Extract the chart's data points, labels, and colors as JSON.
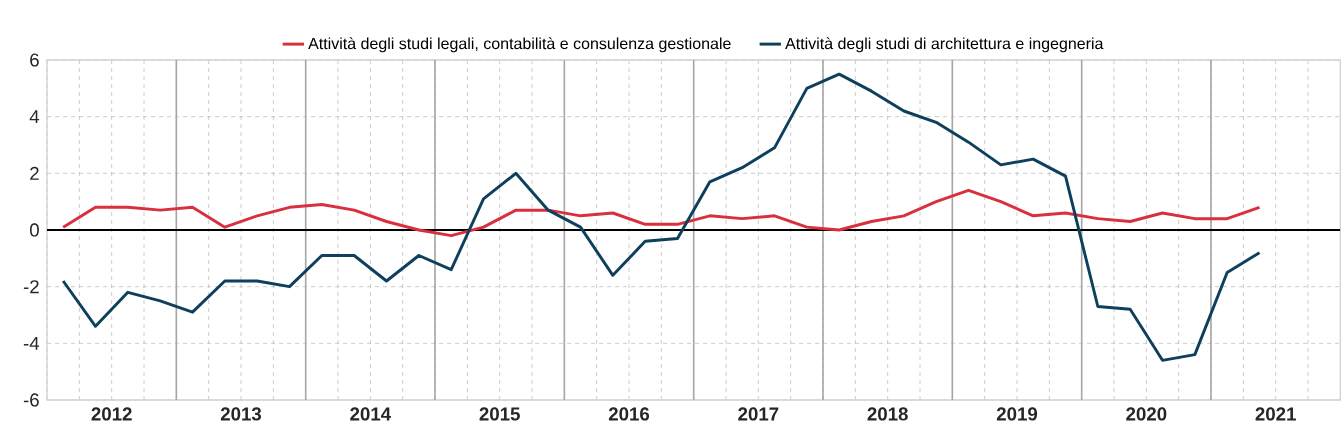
{
  "chart_data": {
    "type": "line",
    "x": [
      2012.125,
      2012.375,
      2012.625,
      2012.875,
      2013.125,
      2013.375,
      2013.625,
      2013.875,
      2014.125,
      2014.375,
      2014.625,
      2014.875,
      2015.125,
      2015.375,
      2015.625,
      2015.875,
      2016.125,
      2016.375,
      2016.625,
      2016.875,
      2017.125,
      2017.375,
      2017.625,
      2017.875,
      2018.125,
      2018.375,
      2018.625,
      2018.875,
      2019.125,
      2019.375,
      2019.625,
      2019.875,
      2020.125,
      2020.375,
      2020.625,
      2020.875,
      2021.125,
      2021.375
    ],
    "series": [
      {
        "name": "Attività degli studi legali, contabilità e consulenza gestionale",
        "color": "#d9303e",
        "values": [
          0.1,
          0.8,
          0.8,
          0.7,
          0.8,
          0.1,
          0.5,
          0.8,
          0.9,
          0.7,
          0.3,
          0.0,
          -0.2,
          0.1,
          0.7,
          0.7,
          0.5,
          0.6,
          0.2,
          0.2,
          0.5,
          0.4,
          0.5,
          0.1,
          0.0,
          0.3,
          0.5,
          1.0,
          1.4,
          1.0,
          0.5,
          0.6,
          0.4,
          0.3,
          0.6,
          0.4,
          0.4,
          0.8
        ]
      },
      {
        "name": "Attività degli studi di architettura e ingegneria",
        "color": "#0e3f5c",
        "values": [
          -1.8,
          -3.4,
          -2.2,
          -2.5,
          -2.9,
          -1.8,
          -1.8,
          -2.0,
          -0.9,
          -0.9,
          -1.8,
          -0.9,
          -1.4,
          1.1,
          2.0,
          0.7,
          0.1,
          -1.6,
          -0.4,
          -0.3,
          1.7,
          2.2,
          2.9,
          5.0,
          5.5,
          4.9,
          4.2,
          3.8,
          3.1,
          2.3,
          2.5,
          1.9,
          -2.7,
          -2.8,
          -4.6,
          -4.4,
          -1.5,
          -0.8
        ]
      }
    ],
    "xlim": [
      2012,
      2022
    ],
    "xticks": [
      {
        "value": 2012.5,
        "label": "2012"
      },
      {
        "value": 2013.5,
        "label": "2013"
      },
      {
        "value": 2014.5,
        "label": "2014"
      },
      {
        "value": 2015.5,
        "label": "2015"
      },
      {
        "value": 2016.5,
        "label": "2016"
      },
      {
        "value": 2017.5,
        "label": "2017"
      },
      {
        "value": 2018.5,
        "label": "2018"
      },
      {
        "value": 2019.5,
        "label": "2019"
      },
      {
        "value": 2020.5,
        "label": "2020"
      },
      {
        "value": 2021.5,
        "label": "2021"
      }
    ],
    "ylim": [
      -6,
      6
    ],
    "yticks": [
      -6,
      -4,
      -2,
      0,
      2,
      4,
      6
    ],
    "ref_lines": [
      {
        "axis": "y",
        "value": 0,
        "color": "#000000"
      }
    ],
    "grid": true,
    "legend": "top",
    "marker": "none",
    "line_style": "solid"
  }
}
